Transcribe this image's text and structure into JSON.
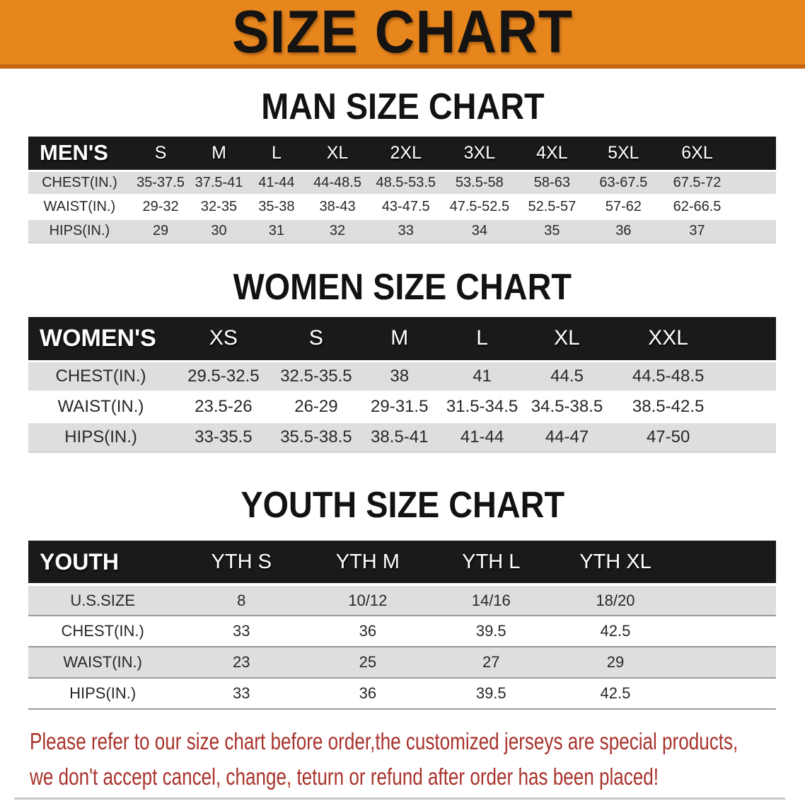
{
  "banner": {
    "title": "SIZE CHART",
    "bg_color": "#E8861E",
    "edge_color": "#C4650F"
  },
  "sections": [
    {
      "id": "mens",
      "heading": "MAN SIZE CHART",
      "table": {
        "header": [
          "MEN'S",
          "S",
          "M",
          "L",
          "XL",
          "2XL",
          "3XL",
          "4XL",
          "5XL",
          "6XL"
        ],
        "rows": [
          {
            "label": "CHEST(IN.)",
            "values": [
              "35-37.5",
              "37.5-41",
              "41-44",
              "44-48.5",
              "48.5-53.5",
              "53.5-58",
              "58-63",
              "63-67.5",
              "67.5-72"
            ]
          },
          {
            "label": "WAIST(IN.)",
            "values": [
              "29-32",
              "32-35",
              "35-38",
              "38-43",
              "43-47.5",
              "47.5-52.5",
              "52.5-57",
              "57-62",
              "62-66.5"
            ]
          },
          {
            "label": "HIPS(IN.)",
            "values": [
              "29",
              "30",
              "31",
              "32",
              "33",
              "34",
              "35",
              "36",
              "37"
            ]
          }
        ]
      }
    },
    {
      "id": "womens",
      "heading": "WOMEN SIZE CHART",
      "table": {
        "header": [
          "WOMEN'S",
          "XS",
          "S",
          "M",
          "L",
          "XL",
          "XXL"
        ],
        "rows": [
          {
            "label": "CHEST(IN.)",
            "values": [
              "29.5-32.5",
              "32.5-35.5",
              "38",
              "41",
              "44.5",
              "44.5-48.5"
            ]
          },
          {
            "label": "WAIST(IN.)",
            "values": [
              "23.5-26",
              "26-29",
              "29-31.5",
              "31.5-34.5",
              "34.5-38.5",
              "38.5-42.5"
            ]
          },
          {
            "label": "HIPS(IN.)",
            "values": [
              "33-35.5",
              "35.5-38.5",
              "38.5-41",
              "41-44",
              "44-47",
              "47-50"
            ]
          }
        ]
      }
    },
    {
      "id": "youth",
      "heading": "YOUTH SIZE CHART",
      "table": {
        "header": [
          "YOUTH",
          "YTH S",
          "YTH M",
          "YTH L",
          "YTH XL"
        ],
        "rows": [
          {
            "label": "U.S.SIZE",
            "values": [
              "8",
              "10/12",
              "14/16",
              "18/20"
            ]
          },
          {
            "label": "CHEST(IN.)",
            "values": [
              "33",
              "36",
              "39.5",
              "42.5"
            ]
          },
          {
            "label": "WAIST(IN.)",
            "values": [
              "23",
              "25",
              "27",
              "29"
            ]
          },
          {
            "label": "HIPS(IN.)",
            "values": [
              "33",
              "36",
              "39.5",
              "42.5"
            ]
          }
        ]
      }
    }
  ],
  "notice": {
    "line1": "Please refer to our size chart before order,the customized jerseys are special products,",
    "line2": "we don't accept cancel, change, teturn or refund after order has been placed!",
    "color": "#A8332C"
  }
}
